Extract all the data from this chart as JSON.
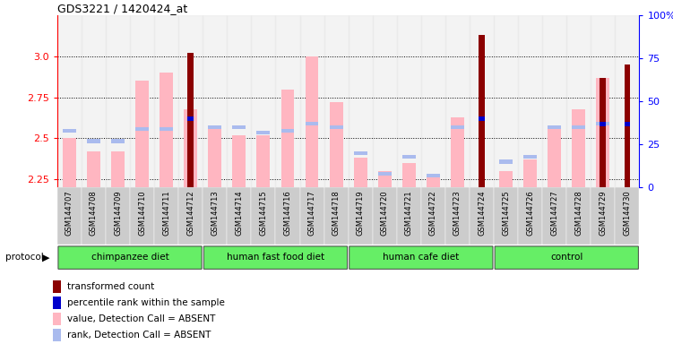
{
  "title": "GDS3221 / 1420424_at",
  "samples": [
    "GSM144707",
    "GSM144708",
    "GSM144709",
    "GSM144710",
    "GSM144711",
    "GSM144712",
    "GSM144713",
    "GSM144714",
    "GSM144715",
    "GSM144716",
    "GSM144717",
    "GSM144718",
    "GSM144719",
    "GSM144720",
    "GSM144721",
    "GSM144722",
    "GSM144723",
    "GSM144724",
    "GSM144725",
    "GSM144726",
    "GSM144727",
    "GSM144728",
    "GSM144729",
    "GSM144730"
  ],
  "transformed_count": [
    null,
    null,
    null,
    null,
    null,
    3.02,
    null,
    null,
    null,
    null,
    null,
    null,
    null,
    null,
    null,
    null,
    null,
    3.13,
    null,
    null,
    null,
    null,
    2.87,
    2.95
  ],
  "percentile_rank": [
    null,
    null,
    null,
    null,
    null,
    40,
    null,
    null,
    null,
    null,
    null,
    null,
    null,
    null,
    null,
    null,
    null,
    40,
    null,
    null,
    null,
    null,
    37,
    37
  ],
  "value_absent": [
    2.5,
    2.42,
    2.42,
    2.85,
    2.9,
    2.68,
    2.58,
    2.52,
    2.52,
    2.8,
    3.0,
    2.72,
    2.38,
    2.3,
    2.35,
    2.27,
    2.63,
    null,
    2.3,
    2.37,
    2.57,
    2.68,
    2.87,
    null
  ],
  "rank_absent": [
    33,
    27,
    27,
    34,
    34,
    null,
    35,
    35,
    32,
    33,
    37,
    35,
    20,
    8,
    18,
    7,
    35,
    null,
    15,
    18,
    35,
    35,
    37,
    null
  ],
  "groups": [
    {
      "label": "chimpanzee diet",
      "start": 0,
      "end": 5
    },
    {
      "label": "human fast food diet",
      "start": 6,
      "end": 11
    },
    {
      "label": "human cafe diet",
      "start": 12,
      "end": 17
    },
    {
      "label": "control",
      "start": 18,
      "end": 23
    }
  ],
  "ylim_left": [
    2.2,
    3.25
  ],
  "ylim_right": [
    0,
    100
  ],
  "yticks_left": [
    2.25,
    2.5,
    2.75,
    3.0
  ],
  "yticks_right": [
    0,
    25,
    50,
    75,
    100
  ],
  "bar_width": 0.55,
  "color_dark_red": "#8B0000",
  "color_pink": "#FFB6C1",
  "color_blue": "#0000CC",
  "color_lightblue": "#AABBEE"
}
